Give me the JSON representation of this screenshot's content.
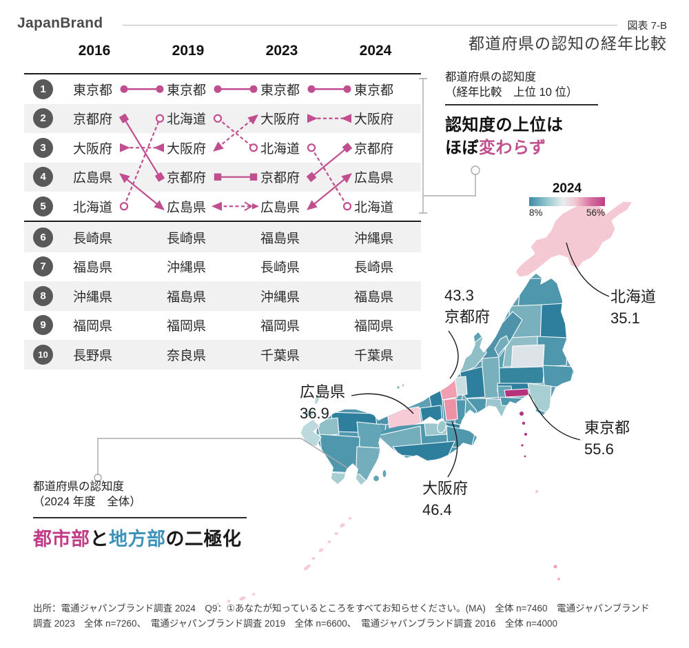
{
  "brand": "JapanBrand",
  "figure": {
    "label": "図表 7-B",
    "title": "都道府県の認知の経年比較"
  },
  "ranking": {
    "years": [
      "2016",
      "2019",
      "2023",
      "2024"
    ],
    "accent_color": "#c14f90",
    "rows": [
      {
        "rank": "1",
        "cells": [
          "東京都",
          "東京都",
          "東京都",
          "東京都"
        ]
      },
      {
        "rank": "2",
        "cells": [
          "京都府",
          "北海道",
          "大阪府",
          "大阪府"
        ]
      },
      {
        "rank": "3",
        "cells": [
          "大阪府",
          "大阪府",
          "北海道",
          "京都府"
        ]
      },
      {
        "rank": "4",
        "cells": [
          "広島県",
          "京都府",
          "京都府",
          "広島県"
        ]
      },
      {
        "rank": "5",
        "cells": [
          "北海道",
          "広島県",
          "広島県",
          "北海道"
        ]
      },
      {
        "rank": "6",
        "cells": [
          "長崎県",
          "長崎県",
          "福島県",
          "沖縄県"
        ]
      },
      {
        "rank": "7",
        "cells": [
          "福島県",
          "沖縄県",
          "長崎県",
          "長崎県"
        ]
      },
      {
        "rank": "8",
        "cells": [
          "沖縄県",
          "福島県",
          "沖縄県",
          "福島県"
        ]
      },
      {
        "rank": "9",
        "cells": [
          "福岡県",
          "福岡県",
          "福岡県",
          "福岡県"
        ]
      },
      {
        "rank": "10",
        "cells": [
          "長野県",
          "奈良県",
          "千葉県",
          "千葉県"
        ]
      }
    ],
    "series": [
      {
        "name": "東京都",
        "marker": "dot",
        "lines": [
          "solid",
          "solid",
          "solid"
        ],
        "ranks": [
          1,
          1,
          1,
          1
        ]
      },
      {
        "name": "京都府",
        "marker": "square",
        "lines": [
          "solid",
          "solid",
          "solid"
        ],
        "ranks": [
          2,
          4,
          4,
          3
        ]
      },
      {
        "name": "大阪府",
        "marker": "triangle",
        "lines": [
          "dashed",
          "dashed",
          "dashed"
        ],
        "ranks": [
          3,
          3,
          2,
          2
        ]
      },
      {
        "name": "広島県",
        "marker": "triangle",
        "lines": [
          "solid",
          "dashed",
          "solid"
        ],
        "ranks": [
          4,
          5,
          5,
          4
        ]
      },
      {
        "name": "北海道",
        "marker": "open-circle",
        "lines": [
          "dashed",
          "dashed",
          "dashed"
        ],
        "ranks": [
          5,
          2,
          3,
          5
        ]
      }
    ]
  },
  "panel_top": {
    "caption_line1": "都道府県の認知度",
    "caption_line2": "（経年比較　上位 10 位）",
    "headline_plain": "認知度の上位は",
    "headline_prefix": "ほぼ",
    "headline_highlight": "変わらず",
    "highlight_color": "#c0508d"
  },
  "panel_bottom": {
    "caption_line1": "都道府県の認知度",
    "caption_line2": "（2024 年度　全体）",
    "headline": [
      {
        "text": "都市部",
        "color": "#c03c86"
      },
      {
        "text": "と",
        "color": "#1a1a1a"
      },
      {
        "text": "地方部",
        "color": "#3b92bb"
      },
      {
        "text": "の二極化",
        "color": "#1a1a1a"
      }
    ]
  },
  "legend": {
    "year": "2024",
    "min_label": "8%",
    "max_label": "56%",
    "low_color": "#3d8ba6",
    "high_color": "#bf3d86"
  },
  "map_labels": [
    {
      "id": "kyoto",
      "name": "京都府",
      "value": "43.3"
    },
    {
      "id": "hokkaido",
      "name": "北海道",
      "value": "35.1"
    },
    {
      "id": "tokyo",
      "name": "東京都",
      "value": "55.6"
    },
    {
      "id": "hiroshima",
      "name": "広島県",
      "value": "36.9"
    },
    {
      "id": "osaka",
      "name": "大阪府",
      "value": "46.4"
    }
  ],
  "source_line1": "出所：電通ジャパンブランド調査 2024　Q9：①あなたが知っているところをすべてお知らせください。(MA)　全体 n=7460　電通ジャパンブランド",
  "source_line2": "調査 2023　全体 n=7260、　電通ジャパンブランド調査 2019　全体 n=6600、　電通ジャパンブランド調査 2016　全体 n=4000",
  "chart_data": [
    {
      "type": "table",
      "title": "都道府県の認知度（経年比較　上位10位）",
      "columns": [
        "2016",
        "2019",
        "2023",
        "2024"
      ],
      "rows": [
        [
          "東京都",
          "東京都",
          "東京都",
          "東京都"
        ],
        [
          "京都府",
          "北海道",
          "大阪府",
          "大阪府"
        ],
        [
          "大阪府",
          "大阪府",
          "北海道",
          "京都府"
        ],
        [
          "広島県",
          "京都府",
          "京都府",
          "広島県"
        ],
        [
          "北海道",
          "広島県",
          "広島県",
          "北海道"
        ],
        [
          "長崎県",
          "長崎県",
          "福島県",
          "沖縄県"
        ],
        [
          "福島県",
          "沖縄県",
          "長崎県",
          "長崎県"
        ],
        [
          "沖縄県",
          "福島県",
          "沖縄県",
          "福島県"
        ],
        [
          "福岡県",
          "福岡県",
          "福岡県",
          "福岡県"
        ],
        [
          "長野県",
          "奈良県",
          "千葉県",
          "千葉県"
        ]
      ]
    },
    {
      "type": "heatmap",
      "title": "都道府県の認知度（2024年度　全体）",
      "legend_position": "top",
      "scale": {
        "min": 8,
        "max": 56,
        "unit": "%",
        "low_color": "#3d8ba6",
        "high_color": "#bf3d86"
      },
      "values": [
        {
          "name": "東京都",
          "value": 55.6
        },
        {
          "name": "大阪府",
          "value": 46.4
        },
        {
          "name": "京都府",
          "value": 43.3
        },
        {
          "name": "広島県",
          "value": 36.9
        },
        {
          "name": "北海道",
          "value": 35.1
        }
      ]
    }
  ]
}
